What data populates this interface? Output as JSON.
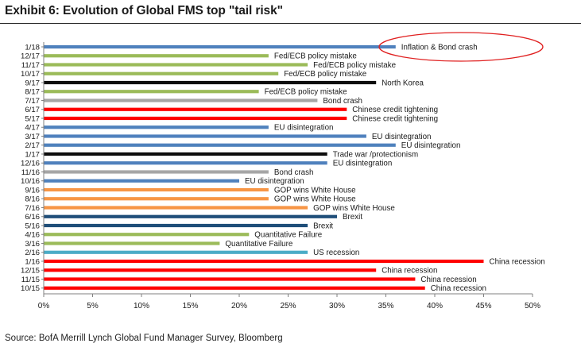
{
  "title": "Exhibit 6: Evolution of Global FMS top \"tail risk\"",
  "source": "Source: BofA Merrill Lynch Global Fund Manager Survey, Bloomberg",
  "colors": {
    "blue": "#4f81bd",
    "green": "#9bbb59",
    "black": "#0d0d0d",
    "grey": "#a6a6a6",
    "red": "#ff0000",
    "orange": "#f79646",
    "darkblue": "#1f4e79",
    "lightblue": "#4bacc6",
    "highlight": "#e02020"
  },
  "chart_data": {
    "type": "bar",
    "orientation": "horizontal",
    "title": "Exhibit 6: Evolution of Global FMS top \"tail risk\"",
    "xlabel": "",
    "ylabel": "",
    "xlim": [
      0,
      50
    ],
    "x_ticks": [
      0,
      5,
      10,
      15,
      20,
      25,
      30,
      35,
      40,
      45,
      50
    ],
    "x_tick_labels": [
      "0%",
      "5%",
      "10%",
      "15%",
      "20%",
      "25%",
      "30%",
      "35%",
      "40%",
      "45%",
      "50%"
    ],
    "grid": false,
    "highlight": "1/18",
    "bars": [
      {
        "date": "1/18",
        "value": 36,
        "risk": "Inflation & Bond crash",
        "color": "blue"
      },
      {
        "date": "12/17",
        "value": 23,
        "risk": "Fed/ECB policy mistake",
        "color": "green"
      },
      {
        "date": "11/17",
        "value": 27,
        "risk": "Fed/ECB policy mistake",
        "color": "green"
      },
      {
        "date": "10/17",
        "value": 24,
        "risk": "Fed/ECB policy mistake",
        "color": "green"
      },
      {
        "date": "9/17",
        "value": 34,
        "risk": "North Korea",
        "color": "black"
      },
      {
        "date": "8/17",
        "value": 22,
        "risk": "Fed/ECB policy mistake",
        "color": "green"
      },
      {
        "date": "7/17",
        "value": 28,
        "risk": "Bond crash",
        "color": "grey"
      },
      {
        "date": "6/17",
        "value": 31,
        "risk": "Chinese credit tightening",
        "color": "red"
      },
      {
        "date": "5/17",
        "value": 31,
        "risk": "Chinese credit tightening",
        "color": "red"
      },
      {
        "date": "4/17",
        "value": 23,
        "risk": "EU disintegration",
        "color": "blue"
      },
      {
        "date": "3/17",
        "value": 33,
        "risk": "EU disintegration",
        "color": "blue"
      },
      {
        "date": "2/17",
        "value": 36,
        "risk": "EU disintegration",
        "color": "blue"
      },
      {
        "date": "1/17",
        "value": 29,
        "risk": "Trade war /protectionism",
        "color": "black"
      },
      {
        "date": "12/16",
        "value": 29,
        "risk": "EU disintegration",
        "color": "blue"
      },
      {
        "date": "11/16",
        "value": 23,
        "risk": "Bond crash",
        "color": "grey"
      },
      {
        "date": "10/16",
        "value": 20,
        "risk": "EU disintegration",
        "color": "blue"
      },
      {
        "date": "9/16",
        "value": 23,
        "risk": "GOP wins White House",
        "color": "orange"
      },
      {
        "date": "8/16",
        "value": 23,
        "risk": "GOP wins White House",
        "color": "orange"
      },
      {
        "date": "7/16",
        "value": 27,
        "risk": "GOP wins White House",
        "color": "orange"
      },
      {
        "date": "6/16",
        "value": 30,
        "risk": "Brexit",
        "color": "darkblue"
      },
      {
        "date": "5/16",
        "value": 27,
        "risk": "Brexit",
        "color": "darkblue"
      },
      {
        "date": "4/16",
        "value": 21,
        "risk": "Quantitative Failure",
        "color": "green"
      },
      {
        "date": "3/16",
        "value": 18,
        "risk": "Quantitative Failure",
        "color": "green"
      },
      {
        "date": "2/16",
        "value": 27,
        "risk": "US recession",
        "color": "lightblue"
      },
      {
        "date": "1/16",
        "value": 45,
        "risk": "China recession",
        "color": "red"
      },
      {
        "date": "12/15",
        "value": 34,
        "risk": "China recession",
        "color": "red"
      },
      {
        "date": "11/15",
        "value": 38,
        "risk": "China recession",
        "color": "red"
      },
      {
        "date": "10/15",
        "value": 39,
        "risk": "China recession",
        "color": "red"
      }
    ]
  }
}
